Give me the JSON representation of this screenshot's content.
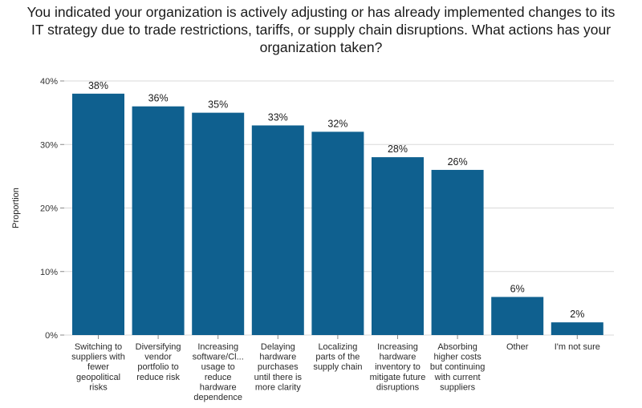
{
  "chart_data": {
    "type": "bar",
    "title_lines": [
      "You indicated your organization is actively adjusting or has already implemented changes to its",
      "IT strategy due to trade restrictions, tariffs, or supply chain disruptions. What actions has your",
      "organization taken?"
    ],
    "ylabel": "Proportion",
    "xlabel": "",
    "ylim": [
      0,
      40
    ],
    "yticks": [
      0,
      10,
      20,
      30,
      40
    ],
    "ytick_labels": [
      "0%",
      "10%",
      "20%",
      "30%",
      "40%"
    ],
    "grid": true,
    "bar_color": "#0f608f",
    "categories": [
      [
        "Switching to",
        "suppliers with",
        "fewer",
        "geopolitical",
        "risks"
      ],
      [
        "Diversifying",
        "vendor",
        "portfolio to",
        "reduce risk"
      ],
      [
        "Increasing",
        "software/Cl...",
        "usage to",
        "reduce",
        "hardware",
        "dependence"
      ],
      [
        "Delaying",
        "hardware",
        "purchases",
        "until there is",
        "more clarity"
      ],
      [
        "Localizing",
        "parts of the",
        "supply chain"
      ],
      [
        "Increasing",
        "hardware",
        "inventory to",
        "mitigate future",
        "disruptions"
      ],
      [
        "Absorbing",
        "higher costs",
        "but continuing",
        "with current",
        "suppliers"
      ],
      [
        "Other"
      ],
      [
        "I'm not sure"
      ]
    ],
    "values": [
      38,
      36,
      35,
      33,
      32,
      28,
      26,
      6,
      2
    ],
    "data_labels": [
      "38%",
      "36%",
      "35%",
      "33%",
      "32%",
      "28%",
      "26%",
      "6%",
      "2%"
    ]
  }
}
